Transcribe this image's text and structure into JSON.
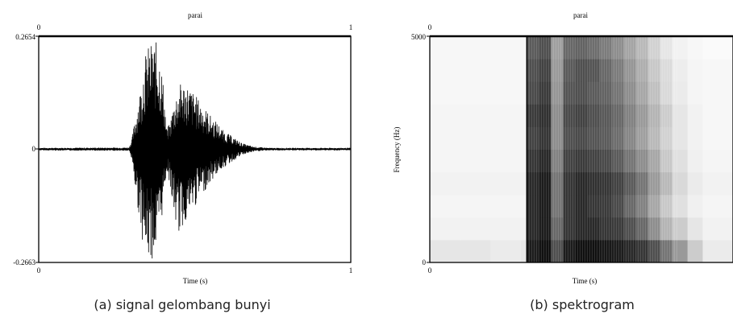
{
  "chart_data": [
    {
      "id": "waveform",
      "type": "line",
      "title": "parai",
      "xlabel": "Time (s)",
      "ylabel": "",
      "xlim": [
        0,
        1
      ],
      "ylim": [
        -0.2663,
        0.2654
      ],
      "x_ticks_bottom": [
        "0",
        "1"
      ],
      "x_ticks_top": [
        "0",
        "1"
      ],
      "y_ticks": [
        "0.2654",
        "0",
        "-0.2663"
      ],
      "caption": "(a)   signal gelombang bunyi",
      "line_color": "#000000",
      "series": [
        {
          "x": [
            0,
            0.29,
            0.3,
            0.31,
            0.32,
            0.33,
            0.335,
            0.34,
            0.35,
            0.36,
            0.37,
            0.38,
            0.39,
            0.4,
            0.41,
            0.42,
            0.43,
            0.44,
            0.45,
            0.46,
            0.47,
            0.48,
            0.49,
            0.5,
            0.51,
            0.52,
            0.53,
            0.54,
            0.55,
            0.56,
            0.57,
            0.58,
            0.59,
            0.6,
            0.61,
            0.62,
            0.63,
            0.64,
            0.65,
            0.66,
            0.67,
            0.68,
            0.69,
            0.7,
            0.72,
            0.74,
            0.76,
            1.0
          ],
          "envelope_max": [
            0.003,
            0.004,
            0.03,
            0.08,
            0.12,
            0.16,
            0.2,
            0.22,
            0.24,
            0.25,
            0.255,
            0.25,
            0.22,
            0.15,
            0.05,
            0.06,
            0.1,
            0.13,
            0.15,
            0.16,
            0.155,
            0.15,
            0.14,
            0.13,
            0.12,
            0.11,
            0.1,
            0.09,
            0.08,
            0.07,
            0.065,
            0.055,
            0.045,
            0.04,
            0.035,
            0.03,
            0.025,
            0.02,
            0.015,
            0.012,
            0.01,
            0.008,
            0.006,
            0.005,
            0.004,
            0.003,
            0.003,
            0.003
          ],
          "envelope_min": [
            -0.003,
            -0.004,
            -0.03,
            -0.1,
            -0.15,
            -0.2,
            -0.23,
            -0.25,
            -0.26,
            -0.262,
            -0.255,
            -0.24,
            -0.2,
            -0.12,
            -0.05,
            -0.08,
            -0.14,
            -0.18,
            -0.2,
            -0.19,
            -0.17,
            -0.16,
            -0.15,
            -0.14,
            -0.12,
            -0.11,
            -0.1,
            -0.09,
            -0.08,
            -0.07,
            -0.06,
            -0.05,
            -0.045,
            -0.04,
            -0.035,
            -0.03,
            -0.025,
            -0.02,
            -0.015,
            -0.012,
            -0.01,
            -0.008,
            -0.006,
            -0.005,
            -0.004,
            -0.003,
            -0.003,
            -0.003
          ]
        }
      ]
    },
    {
      "id": "spectrogram",
      "type": "heatmap",
      "title": "parai",
      "xlabel": "Time (s)",
      "ylabel": "Frequency (Hz)",
      "xlim": [
        0,
        1
      ],
      "ylim": [
        0,
        5000
      ],
      "x_ticks_bottom": [
        "0"
      ],
      "x_ticks_top": [
        "0"
      ],
      "y_ticks": [
        "5000",
        "0"
      ],
      "caption": "(b) spektrogram",
      "color_low": "#ffffff",
      "color_high": "#000000",
      "time_bins": [
        0.0,
        0.1,
        0.2,
        0.3,
        0.32,
        0.36,
        0.4,
        0.44,
        0.48,
        0.52,
        0.56,
        0.6,
        0.64,
        0.68,
        0.72,
        0.76,
        0.8,
        0.85,
        0.9,
        1.0
      ],
      "freq_bins": [
        0,
        500,
        1000,
        1500,
        2000,
        2500,
        3000,
        3500,
        4000,
        4500
      ],
      "intensity": [
        [
          0.1,
          0.1,
          0.08,
          0.1,
          0.9,
          0.95,
          0.7,
          0.9,
          0.95,
          0.95,
          0.92,
          0.9,
          0.85,
          0.8,
          0.7,
          0.55,
          0.4,
          0.2,
          0.08,
          0.05
        ],
        [
          0.05,
          0.05,
          0.05,
          0.05,
          0.85,
          0.9,
          0.6,
          0.8,
          0.85,
          0.85,
          0.8,
          0.78,
          0.7,
          0.6,
          0.45,
          0.3,
          0.2,
          0.1,
          0.05,
          0.03
        ],
        [
          0.04,
          0.04,
          0.04,
          0.04,
          0.85,
          0.9,
          0.55,
          0.8,
          0.85,
          0.8,
          0.78,
          0.72,
          0.6,
          0.5,
          0.35,
          0.22,
          0.12,
          0.06,
          0.04,
          0.02
        ],
        [
          0.05,
          0.05,
          0.05,
          0.05,
          0.85,
          0.9,
          0.55,
          0.8,
          0.85,
          0.82,
          0.8,
          0.75,
          0.65,
          0.55,
          0.4,
          0.28,
          0.15,
          0.08,
          0.05,
          0.03
        ],
        [
          0.04,
          0.04,
          0.04,
          0.04,
          0.8,
          0.85,
          0.5,
          0.75,
          0.78,
          0.75,
          0.72,
          0.65,
          0.55,
          0.45,
          0.35,
          0.22,
          0.12,
          0.06,
          0.04,
          0.02
        ],
        [
          0.04,
          0.04,
          0.04,
          0.04,
          0.75,
          0.8,
          0.45,
          0.7,
          0.72,
          0.68,
          0.65,
          0.58,
          0.48,
          0.38,
          0.28,
          0.18,
          0.1,
          0.05,
          0.03,
          0.02
        ],
        [
          0.04,
          0.04,
          0.04,
          0.04,
          0.78,
          0.82,
          0.45,
          0.72,
          0.75,
          0.7,
          0.66,
          0.6,
          0.5,
          0.4,
          0.3,
          0.2,
          0.1,
          0.05,
          0.03,
          0.02
        ],
        [
          0.03,
          0.03,
          0.03,
          0.03,
          0.72,
          0.78,
          0.42,
          0.68,
          0.7,
          0.65,
          0.62,
          0.55,
          0.45,
          0.35,
          0.25,
          0.15,
          0.08,
          0.04,
          0.03,
          0.02
        ],
        [
          0.03,
          0.03,
          0.03,
          0.03,
          0.7,
          0.75,
          0.4,
          0.65,
          0.7,
          0.68,
          0.6,
          0.52,
          0.42,
          0.32,
          0.22,
          0.14,
          0.07,
          0.04,
          0.03,
          0.02
        ],
        [
          0.03,
          0.03,
          0.03,
          0.03,
          0.65,
          0.7,
          0.38,
          0.6,
          0.62,
          0.58,
          0.52,
          0.45,
          0.36,
          0.28,
          0.18,
          0.1,
          0.05,
          0.03,
          0.02,
          0.02
        ]
      ]
    }
  ]
}
